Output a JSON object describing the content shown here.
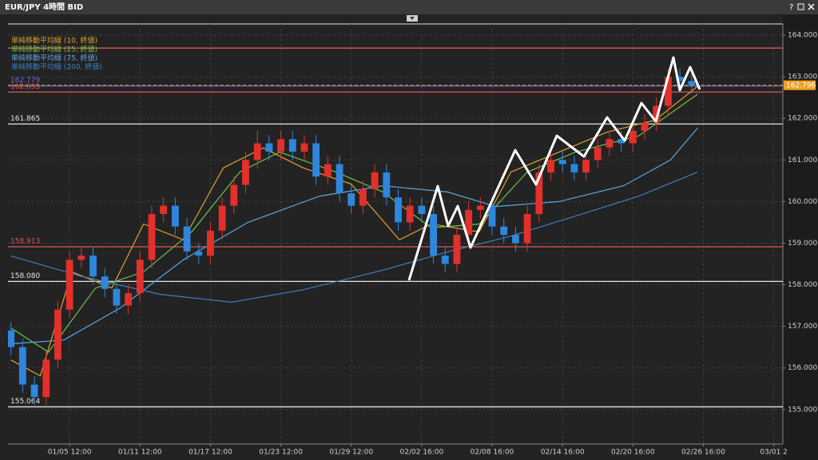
{
  "ui": {
    "help": "?"
  },
  "chart_data": {
    "type": "candlestick",
    "title": "EUR/JPY 4時間 BID",
    "categories": [
      null,
      null,
      null,
      null,
      null,
      null,
      null,
      null,
      null,
      null,
      null,
      null,
      null,
      null,
      null,
      null,
      null,
      null,
      null,
      null,
      null,
      null,
      null,
      null,
      null,
      null,
      null,
      null,
      null,
      null,
      null,
      null,
      null,
      null,
      null,
      null,
      null,
      null,
      null,
      null,
      null,
      null,
      null,
      null,
      null,
      null,
      null,
      null,
      null,
      null,
      null,
      null,
      null,
      null,
      null,
      null,
      null,
      null,
      null
    ],
    "open": [
      156.9,
      156.5,
      155.6,
      155.3,
      156.2,
      157.4,
      158.6,
      158.7,
      158.2,
      157.9,
      157.5,
      157.8,
      158.6,
      159.7,
      159.9,
      159.4,
      158.8,
      158.7,
      159.3,
      159.9,
      160.4,
      161.0,
      161.4,
      161.2,
      161.5,
      161.2,
      161.4,
      160.6,
      160.9,
      160.2,
      159.9,
      160.3,
      160.7,
      160.1,
      159.5,
      159.9,
      159.7,
      158.7,
      158.5,
      159.2,
      159.8,
      159.9,
      159.4,
      159.2,
      159.0,
      159.7,
      160.7,
      161.0,
      160.9,
      160.7,
      161.0,
      161.3,
      161.5,
      161.4,
      161.7,
      161.9,
      162.3,
      163.0,
      162.9
    ],
    "high": [
      157.1,
      156.7,
      155.8,
      156.4,
      157.6,
      158.8,
      158.9,
      158.9,
      158.4,
      158.1,
      158.0,
      158.8,
      159.9,
      160.1,
      160.1,
      159.6,
      159.0,
      159.5,
      160.1,
      160.6,
      161.2,
      161.7,
      161.6,
      161.7,
      161.7,
      161.6,
      161.6,
      161.1,
      161.1,
      160.4,
      160.5,
      160.9,
      160.9,
      160.3,
      160.1,
      160.1,
      159.9,
      158.9,
      159.4,
      160.0,
      160.1,
      160.1,
      159.6,
      159.4,
      159.9,
      160.9,
      161.2,
      161.2,
      161.1,
      161.2,
      161.5,
      161.7,
      161.7,
      161.9,
      162.1,
      162.5,
      163.2,
      163.2,
      163.1
    ],
    "low": [
      156.3,
      155.4,
      155.1,
      155.1,
      156.0,
      157.2,
      158.4,
      158.0,
      157.7,
      157.3,
      157.3,
      157.6,
      158.4,
      159.5,
      159.2,
      158.6,
      158.5,
      158.5,
      159.1,
      159.7,
      160.2,
      160.8,
      161.0,
      161.0,
      161.0,
      161.0,
      160.4,
      160.4,
      160.0,
      159.7,
      159.7,
      160.1,
      159.9,
      159.3,
      159.3,
      159.5,
      158.5,
      158.3,
      158.3,
      159.0,
      159.6,
      159.2,
      159.0,
      158.8,
      158.8,
      159.5,
      160.5,
      160.7,
      160.5,
      160.5,
      160.8,
      161.1,
      161.2,
      161.2,
      161.5,
      161.7,
      162.1,
      162.7,
      162.6
    ],
    "close": [
      156.5,
      155.6,
      155.3,
      156.2,
      157.4,
      158.6,
      158.7,
      158.2,
      157.9,
      157.5,
      157.8,
      158.6,
      159.7,
      159.9,
      159.4,
      158.8,
      158.7,
      159.3,
      159.9,
      160.4,
      161.0,
      161.4,
      161.2,
      161.5,
      161.2,
      161.4,
      160.6,
      160.9,
      160.2,
      159.9,
      160.3,
      160.7,
      160.1,
      159.5,
      159.9,
      159.7,
      158.7,
      158.5,
      159.2,
      159.8,
      159.9,
      159.4,
      159.2,
      159.0,
      159.7,
      160.7,
      161.0,
      160.9,
      160.7,
      161.0,
      161.3,
      161.5,
      161.4,
      161.7,
      161.9,
      162.3,
      163.0,
      162.9,
      162.8
    ],
    "up_color": "#e3302b",
    "down_color": "#2f86dd",
    "series": [
      {
        "name": "単純移動平均線 (10, 終値)",
        "color": "#e0a030",
        "x": [
          0.0,
          2.5,
          5.2,
          8.6,
          11.3,
          14.7,
          18.1,
          21.5,
          24.9,
          29.0,
          33.1,
          35.8,
          39.9,
          42.6,
          46.7,
          50.8,
          54.9,
          58.5
        ],
        "values": [
          156.19,
          155.81,
          158.31,
          157.92,
          159.46,
          159.08,
          160.81,
          161.29,
          160.81,
          160.42,
          159.08,
          159.46,
          159.27,
          160.71,
          161.19,
          161.67,
          161.96,
          162.77
        ]
      },
      {
        "name": "単純移動平均線 (25, 終値)",
        "color": "#6cc24a",
        "x": [
          0.0,
          3.2,
          7.2,
          11.3,
          15.4,
          19.5,
          22.9,
          27.7,
          31.7,
          35.8,
          39.9,
          44.0,
          48.1,
          53.5,
          58.5
        ],
        "values": [
          156.96,
          156.38,
          157.92,
          158.31,
          159.27,
          160.71,
          161.19,
          160.71,
          160.23,
          159.37,
          159.46,
          160.71,
          161.19,
          161.58,
          162.58
        ]
      },
      {
        "name": "単純移動平均線 (75, 終値)",
        "color": "#5aa6e0",
        "x": [
          0.0,
          4.5,
          9.3,
          14.7,
          20.2,
          26.3,
          31.7,
          37.2,
          41.3,
          46.7,
          52.2,
          56.2,
          58.5
        ],
        "values": [
          156.58,
          156.67,
          157.44,
          158.6,
          159.5,
          160.13,
          160.38,
          160.23,
          159.88,
          160.0,
          160.38,
          161.0,
          161.77
        ]
      },
      {
        "name": "単純移動平均線 (200, 終値)",
        "color": "#3d7fc4",
        "x": [
          0.0,
          5.9,
          12.7,
          18.8,
          24.9,
          31.7,
          37.2,
          42.6,
          48.1,
          53.5,
          58.5
        ],
        "values": [
          158.69,
          158.21,
          157.77,
          157.58,
          157.88,
          158.35,
          158.79,
          159.17,
          159.65,
          160.13,
          160.71
        ]
      }
    ],
    "levels": [
      {
        "value": 163.69,
        "color": "#e25555"
      },
      {
        "value": 162.779,
        "label": "162.779",
        "color": "#6b6bd8"
      },
      {
        "value": 162.633,
        "label": "162.633",
        "color": "#e25555"
      },
      {
        "value": 161.865,
        "label": "161.865",
        "color": "#e6e6e6"
      },
      {
        "value": 158.913,
        "label": "158.913",
        "color": "#e25555"
      },
      {
        "value": 158.08,
        "label": "158.080",
        "color": "#e6e6e6"
      },
      {
        "value": 155.064,
        "label": "155.064",
        "color": "#e6e6e6"
      }
    ],
    "last": {
      "value": 162.796,
      "label": "162.796",
      "color": "#f0a020"
    },
    "xlim": [
      -0.25,
      65.5
    ],
    "xticks": [
      {
        "value": 5,
        "label": "01/05 12:00"
      },
      {
        "value": 11,
        "label": "01/11 12:00"
      },
      {
        "value": 17,
        "label": "01/17 12:00"
      },
      {
        "value": 23,
        "label": "01/23 12:00"
      },
      {
        "value": 29,
        "label": "01/29 12:00"
      },
      {
        "value": 35,
        "label": "02/02 16:00"
      },
      {
        "value": 41,
        "label": "02/08 16:00"
      },
      {
        "value": 47,
        "label": "02/14 16:00"
      },
      {
        "value": 53,
        "label": "02/20 16:00"
      },
      {
        "value": 59,
        "label": "02/26 16:00"
      },
      {
        "value": 65,
        "label": "03/01 2"
      }
    ],
    "ylim": [
      154.17,
      164.27
    ],
    "yticks": [
      {
        "value": 155,
        "label": "155.000"
      },
      {
        "value": 156,
        "label": "156.000"
      },
      {
        "value": 157,
        "label": "157.000"
      },
      {
        "value": 158,
        "label": "158.000"
      },
      {
        "value": 159,
        "label": "159.000"
      },
      {
        "value": 160,
        "label": "160.000"
      },
      {
        "value": 161,
        "label": "161.000"
      },
      {
        "value": 162,
        "label": "162.000"
      },
      {
        "value": 163,
        "label": "163.000"
      },
      {
        "value": 164,
        "label": "164.000"
      }
    ],
    "grid": true,
    "legend": "top-left"
  }
}
